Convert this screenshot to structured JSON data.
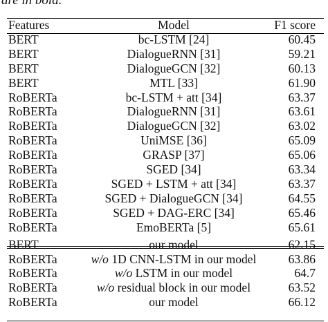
{
  "caption_fragment": "are in bold.",
  "table": {
    "headers": [
      "Features",
      "Model",
      "F1 score"
    ],
    "baseline_rows": [
      {
        "features": "BERT",
        "model": "bc-LSTM [24]",
        "f1": "60.45"
      },
      {
        "features": "BERT",
        "model": "DialogueRNN [31]",
        "f1": "59.21"
      },
      {
        "features": "BERT",
        "model": "DialogueGCN [32]",
        "f1": "60.13"
      },
      {
        "features": "BERT",
        "model": "MTL [33]",
        "f1": "61.90"
      },
      {
        "features": "RoBERTa",
        "model": "bc-LSTM + att [34]",
        "f1": "63.37"
      },
      {
        "features": "RoBERTa",
        "model": "DialogueRNN [31]",
        "f1": "63.61"
      },
      {
        "features": "RoBERTa",
        "model": "DialogueGCN [32]",
        "f1": "63.02"
      },
      {
        "features": "RoBERTa",
        "model": "UniMSE [36]",
        "f1": "65.09"
      },
      {
        "features": "RoBERTa",
        "model": "GRASP [37]",
        "f1": "65.06"
      },
      {
        "features": "RoBERTa",
        "model": "SGED [34]",
        "f1": "63.34"
      },
      {
        "features": "RoBERTa",
        "model": "SGED + LSTM + att [34]",
        "f1": "63.37"
      },
      {
        "features": "RoBERTa",
        "model": "SGED + DialogueGCN [34]",
        "f1": "64.55"
      },
      {
        "features": "RoBERTa",
        "model": "SGED + DAG-ERC [34]",
        "f1": "65.46"
      },
      {
        "features": "RoBERTa",
        "model": "EmoBERTa [5]",
        "f1": "65.61"
      }
    ],
    "ablation": {
      "row1": {
        "features": "BERT",
        "model": "our model",
        "f1": "62.15"
      },
      "row2": {
        "features": "RoBERTa",
        "prefix": "w/o",
        "model": " 1D CNN-LSTM in our model",
        "f1": "63.86"
      },
      "row3": {
        "features": "RoBERTa",
        "prefix": "w/o",
        "model": " LSTM in our model",
        "f1": "64.7"
      },
      "row4": {
        "features": "RoBERTa",
        "prefix": "w/o",
        "model": " residual block in our model",
        "f1": "63.52"
      },
      "row5": {
        "features": "RoBERTa",
        "model": "our model",
        "f1": "66.12"
      }
    }
  }
}
